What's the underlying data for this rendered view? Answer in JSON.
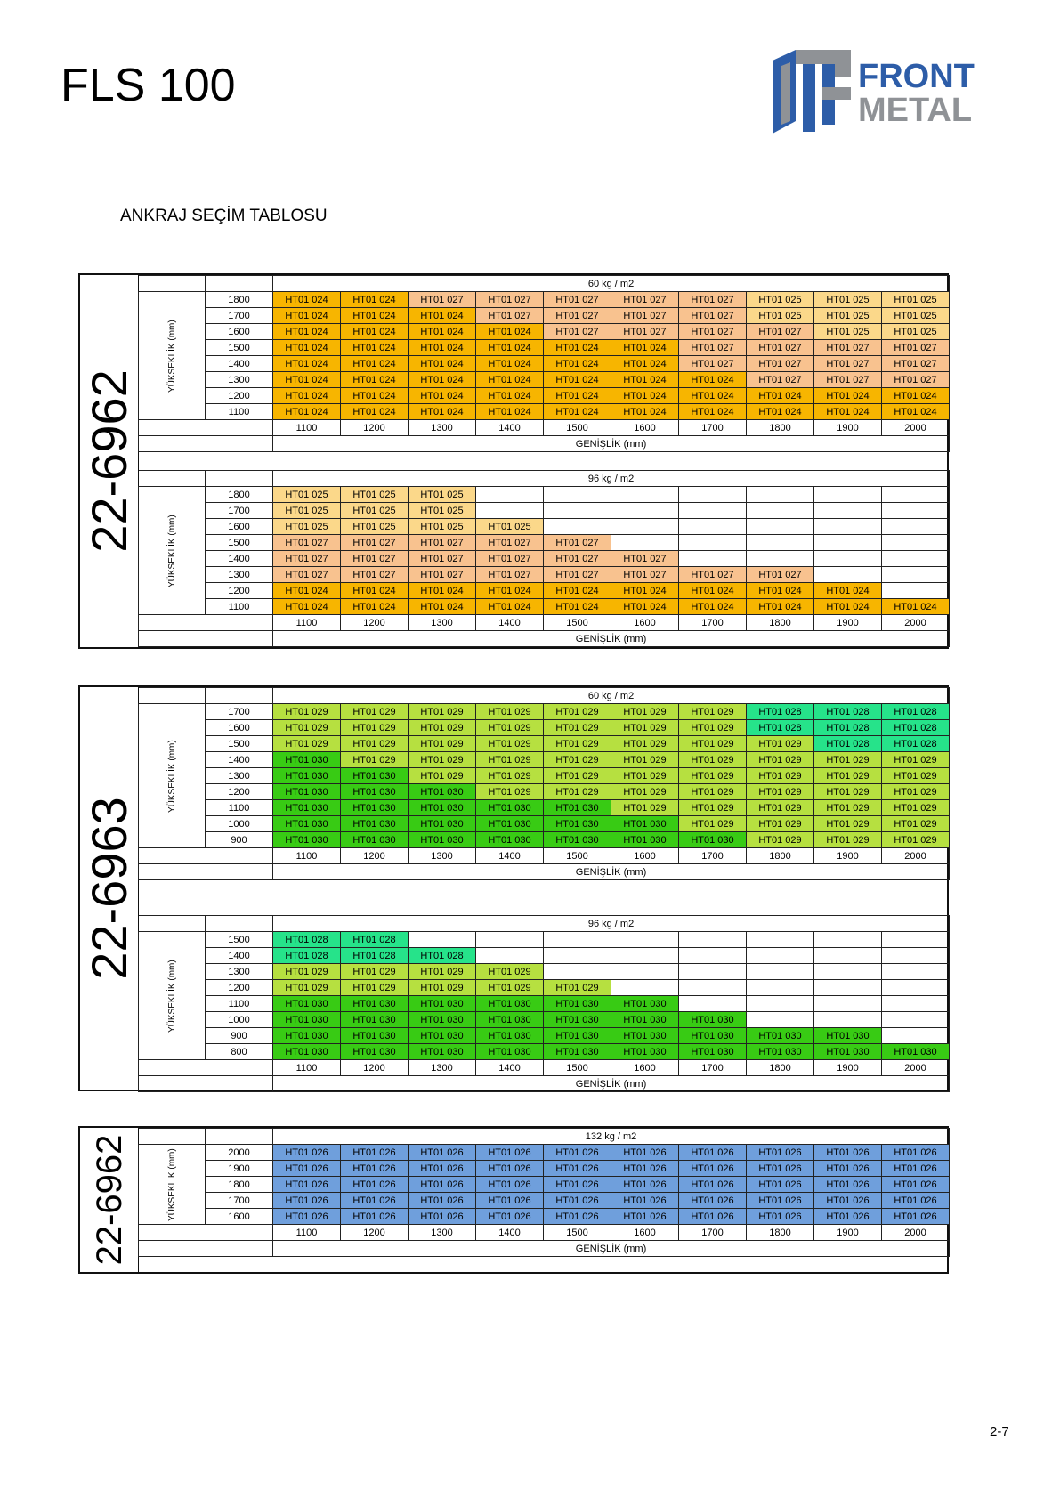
{
  "header": {
    "title": "FLS 100",
    "logo_line1": "FRONT",
    "logo_line2": "METAL",
    "section_title": "ANKRAJ SEÇİM TABLOSU"
  },
  "page_number": "2-7",
  "colors": {
    "HT01 024": "#f7b500",
    "HT01 025": "#fbd88a",
    "HT01 027": "#f8c28f",
    "HT01 028": "#26e38a",
    "HT01 029": "#b6e040",
    "HT01 030": "#38cb14",
    "HT01 026": "#6f9fdc",
    "logo_blue": "#2d5da8",
    "logo_gray": "#8f9296"
  },
  "blocks": [
    {
      "profile": "22-6962",
      "tables": [
        {
          "load": "60 kg / m2",
          "y_axis": "YÜKSEKLİK (mm)",
          "x_axis": "GENİŞLİK (mm)",
          "widths": [
            "1100",
            "1200",
            "1300",
            "1400",
            "1500",
            "1600",
            "1700",
            "1800",
            "1900",
            "2000"
          ],
          "rows": [
            {
              "h": "1800",
              "cells": [
                "HT01 024",
                "HT01 024",
                "HT01 027",
                "HT01 027",
                "HT01 027",
                "HT01 027",
                "HT01 027",
                "HT01 025",
                "HT01 025",
                "HT01 025"
              ]
            },
            {
              "h": "1700",
              "cells": [
                "HT01 024",
                "HT01 024",
                "HT01 024",
                "HT01 027",
                "HT01 027",
                "HT01 027",
                "HT01 027",
                "HT01 025",
                "HT01 025",
                "HT01 025"
              ]
            },
            {
              "h": "1600",
              "cells": [
                "HT01 024",
                "HT01 024",
                "HT01 024",
                "HT01 024",
                "HT01 027",
                "HT01 027",
                "HT01 027",
                "HT01 027",
                "HT01 025",
                "HT01 025"
              ]
            },
            {
              "h": "1500",
              "cells": [
                "HT01 024",
                "HT01 024",
                "HT01 024",
                "HT01 024",
                "HT01 024",
                "HT01 024",
                "HT01 027",
                "HT01 027",
                "HT01 027",
                "HT01 027"
              ]
            },
            {
              "h": "1400",
              "cells": [
                "HT01 024",
                "HT01 024",
                "HT01 024",
                "HT01 024",
                "HT01 024",
                "HT01 024",
                "HT01 027",
                "HT01 027",
                "HT01 027",
                "HT01 027"
              ]
            },
            {
              "h": "1300",
              "cells": [
                "HT01 024",
                "HT01 024",
                "HT01 024",
                "HT01 024",
                "HT01 024",
                "HT01 024",
                "HT01 024",
                "HT01 027",
                "HT01 027",
                "HT01 027"
              ]
            },
            {
              "h": "1200",
              "cells": [
                "HT01 024",
                "HT01 024",
                "HT01 024",
                "HT01 024",
                "HT01 024",
                "HT01 024",
                "HT01 024",
                "HT01 024",
                "HT01 024",
                "HT01 024"
              ]
            },
            {
              "h": "1100",
              "cells": [
                "HT01 024",
                "HT01 024",
                "HT01 024",
                "HT01 024",
                "HT01 024",
                "HT01 024",
                "HT01 024",
                "HT01 024",
                "HT01 024",
                "HT01 024"
              ]
            }
          ]
        },
        {
          "load": "96 kg / m2",
          "y_axis": "YÜKSEKLİK (mm)",
          "x_axis": "GENİŞLİK (mm)",
          "widths": [
            "1100",
            "1200",
            "1300",
            "1400",
            "1500",
            "1600",
            "1700",
            "1800",
            "1900",
            "2000"
          ],
          "rows": [
            {
              "h": "1800",
              "cells": [
                "HT01 025",
                "HT01 025",
                "HT01 025",
                "",
                "",
                "",
                "",
                "",
                "",
                ""
              ]
            },
            {
              "h": "1700",
              "cells": [
                "HT01 025",
                "HT01 025",
                "HT01 025",
                "",
                "",
                "",
                "",
                "",
                "",
                ""
              ]
            },
            {
              "h": "1600",
              "cells": [
                "HT01 025",
                "HT01 025",
                "HT01 025",
                "HT01 025",
                "",
                "",
                "",
                "",
                "",
                ""
              ]
            },
            {
              "h": "1500",
              "cells": [
                "HT01 027",
                "HT01 027",
                "HT01 027",
                "HT01 027",
                "HT01 027",
                "",
                "",
                "",
                "",
                ""
              ]
            },
            {
              "h": "1400",
              "cells": [
                "HT01 027",
                "HT01 027",
                "HT01 027",
                "HT01 027",
                "HT01 027",
                "HT01 027",
                "",
                "",
                "",
                ""
              ]
            },
            {
              "h": "1300",
              "cells": [
                "HT01 027",
                "HT01 027",
                "HT01 027",
                "HT01 027",
                "HT01 027",
                "HT01 027",
                "HT01 027",
                "HT01 027",
                "",
                ""
              ]
            },
            {
              "h": "1200",
              "cells": [
                "HT01 024",
                "HT01 024",
                "HT01 024",
                "HT01 024",
                "HT01 024",
                "HT01 024",
                "HT01 024",
                "HT01 024",
                "HT01 024",
                ""
              ]
            },
            {
              "h": "1100",
              "cells": [
                "HT01 024",
                "HT01 024",
                "HT01 024",
                "HT01 024",
                "HT01 024",
                "HT01 024",
                "HT01 024",
                "HT01 024",
                "HT01 024",
                "HT01 024"
              ]
            }
          ]
        }
      ]
    },
    {
      "profile": "22-6963",
      "tables": [
        {
          "load": "60 kg / m2",
          "y_axis": "YÜKSEKLİK (mm)",
          "x_axis": "GENİŞLİK (mm)",
          "widths": [
            "1100",
            "1200",
            "1300",
            "1400",
            "1500",
            "1600",
            "1700",
            "1800",
            "1900",
            "2000"
          ],
          "rows": [
            {
              "h": "1700",
              "cells": [
                "HT01 029",
                "HT01 029",
                "HT01 029",
                "HT01 029",
                "HT01 029",
                "HT01 029",
                "HT01 029",
                "HT01 028",
                "HT01 028",
                "HT01 028"
              ]
            },
            {
              "h": "1600",
              "cells": [
                "HT01 029",
                "HT01 029",
                "HT01 029",
                "HT01 029",
                "HT01 029",
                "HT01 029",
                "HT01 029",
                "HT01 028",
                "HT01 028",
                "HT01 028"
              ]
            },
            {
              "h": "1500",
              "cells": [
                "HT01 029",
                "HT01 029",
                "HT01 029",
                "HT01 029",
                "HT01 029",
                "HT01 029",
                "HT01 029",
                "HT01 029",
                "HT01 028",
                "HT01 028"
              ]
            },
            {
              "h": "1400",
              "cells": [
                "HT01 030",
                "HT01 029",
                "HT01 029",
                "HT01 029",
                "HT01 029",
                "HT01 029",
                "HT01 029",
                "HT01 029",
                "HT01 029",
                "HT01 029"
              ]
            },
            {
              "h": "1300",
              "cells": [
                "HT01 030",
                "HT01 030",
                "HT01 029",
                "HT01 029",
                "HT01 029",
                "HT01 029",
                "HT01 029",
                "HT01 029",
                "HT01 029",
                "HT01 029"
              ]
            },
            {
              "h": "1200",
              "cells": [
                "HT01 030",
                "HT01 030",
                "HT01 030",
                "HT01 029",
                "HT01 029",
                "HT01 029",
                "HT01 029",
                "HT01 029",
                "HT01 029",
                "HT01 029"
              ]
            },
            {
              "h": "1100",
              "cells": [
                "HT01 030",
                "HT01 030",
                "HT01 030",
                "HT01 030",
                "HT01 030",
                "HT01 029",
                "HT01 029",
                "HT01 029",
                "HT01 029",
                "HT01 029"
              ]
            },
            {
              "h": "1000",
              "cells": [
                "HT01 030",
                "HT01 030",
                "HT01 030",
                "HT01 030",
                "HT01 030",
                "HT01 030",
                "HT01 029",
                "HT01 029",
                "HT01 029",
                "HT01 029"
              ]
            },
            {
              "h": "900",
              "cells": [
                "HT01 030",
                "HT01 030",
                "HT01 030",
                "HT01 030",
                "HT01 030",
                "HT01 030",
                "HT01 030",
                "HT01 029",
                "HT01 029",
                "HT01 029"
              ]
            }
          ]
        },
        {
          "load": "96 kg / m2",
          "y_axis": "YÜKSEKLİK (mm)",
          "x_axis": "GENİŞLİK (mm)",
          "widths": [
            "1100",
            "1200",
            "1300",
            "1400",
            "1500",
            "1600",
            "1700",
            "1800",
            "1900",
            "2000"
          ],
          "rows": [
            {
              "h": "1500",
              "cells": [
                "HT01 028",
                "HT01 028",
                "",
                "",
                "",
                "",
                "",
                "",
                "",
                ""
              ]
            },
            {
              "h": "1400",
              "cells": [
                "HT01 028",
                "HT01 028",
                "HT01 028",
                "",
                "",
                "",
                "",
                "",
                "",
                ""
              ]
            },
            {
              "h": "1300",
              "cells": [
                "HT01 029",
                "HT01 029",
                "HT01 029",
                "HT01 029",
                "",
                "",
                "",
                "",
                "",
                ""
              ]
            },
            {
              "h": "1200",
              "cells": [
                "HT01 029",
                "HT01 029",
                "HT01 029",
                "HT01 029",
                "HT01 029",
                "",
                "",
                "",
                "",
                ""
              ]
            },
            {
              "h": "1100",
              "cells": [
                "HT01 030",
                "HT01 030",
                "HT01 030",
                "HT01 030",
                "HT01 030",
                "HT01 030",
                "",
                "",
                "",
                ""
              ]
            },
            {
              "h": "1000",
              "cells": [
                "HT01 030",
                "HT01 030",
                "HT01 030",
                "HT01 030",
                "HT01 030",
                "HT01 030",
                "HT01 030",
                "",
                "",
                ""
              ]
            },
            {
              "h": "900",
              "cells": [
                "HT01 030",
                "HT01 030",
                "HT01 030",
                "HT01 030",
                "HT01 030",
                "HT01 030",
                "HT01 030",
                "HT01 030",
                "HT01 030",
                ""
              ]
            },
            {
              "h": "800",
              "cells": [
                "HT01 030",
                "HT01 030",
                "HT01 030",
                "HT01 030",
                "HT01 030",
                "HT01 030",
                "HT01 030",
                "HT01 030",
                "HT01 030",
                "HT01 030"
              ]
            }
          ]
        }
      ]
    },
    {
      "profile": "22-6962",
      "tables": [
        {
          "load": "132 kg / m2",
          "y_axis": "YÜKSEKLİK (mm)",
          "x_axis": "GENİŞLİK (mm)",
          "widths": [
            "1100",
            "1200",
            "1300",
            "1400",
            "1500",
            "1600",
            "1700",
            "1800",
            "1900",
            "2000"
          ],
          "rows": [
            {
              "h": "2000",
              "cells": [
                "HT01 026",
                "HT01 026",
                "HT01 026",
                "HT01 026",
                "HT01 026",
                "HT01 026",
                "HT01 026",
                "HT01 026",
                "HT01 026",
                "HT01 026"
              ]
            },
            {
              "h": "1900",
              "cells": [
                "HT01 026",
                "HT01 026",
                "HT01 026",
                "HT01 026",
                "HT01 026",
                "HT01 026",
                "HT01 026",
                "HT01 026",
                "HT01 026",
                "HT01 026"
              ]
            },
            {
              "h": "1800",
              "cells": [
                "HT01 026",
                "HT01 026",
                "HT01 026",
                "HT01 026",
                "HT01 026",
                "HT01 026",
                "HT01 026",
                "HT01 026",
                "HT01 026",
                "HT01 026"
              ]
            },
            {
              "h": "1700",
              "cells": [
                "HT01 026",
                "HT01 026",
                "HT01 026",
                "HT01 026",
                "HT01 026",
                "HT01 026",
                "HT01 026",
                "HT01 026",
                "HT01 026",
                "HT01 026"
              ]
            },
            {
              "h": "1600",
              "cells": [
                "HT01 026",
                "HT01 026",
                "HT01 026",
                "HT01 026",
                "HT01 026",
                "HT01 026",
                "HT01 026",
                "HT01 026",
                "HT01 026",
                "HT01 026"
              ]
            }
          ]
        }
      ]
    }
  ]
}
